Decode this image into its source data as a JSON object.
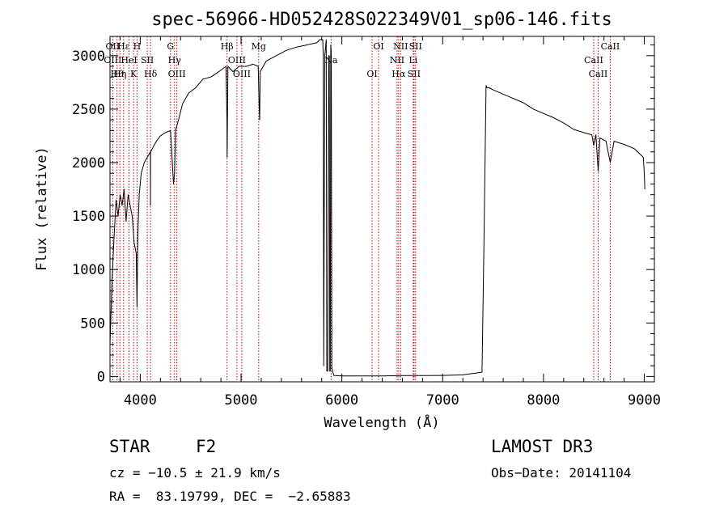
{
  "chart_data": {
    "type": "line",
    "title": "spec-56966-HD052428S022349V01_sp06-146.fits",
    "xlabel": "Wavelength (Å)",
    "ylabel": "Flux (relative)",
    "xlim": [
      3700,
      9100
    ],
    "ylim": [
      -50,
      3180
    ],
    "xticks": [
      4000,
      5000,
      6000,
      7000,
      8000,
      9000
    ],
    "yticks": [
      0,
      500,
      1000,
      1500,
      2000,
      2500,
      3000
    ],
    "grid": false,
    "series": [
      {
        "x": [
          3700,
          3720,
          3740,
          3760,
          3780,
          3800,
          3820,
          3840,
          3860,
          3880,
          3900,
          3920,
          3940,
          3960,
          3968,
          3975,
          3990,
          4010,
          4040,
          4070,
          4100,
          4101,
          4102,
          4130,
          4160,
          4200,
          4250,
          4300,
          4330,
          4340,
          4350,
          4380,
          4420,
          4480,
          4550,
          4620,
          4700,
          4780,
          4850,
          4860,
          4862,
          4870,
          4920,
          4980,
          5050,
          5120,
          5170,
          5180,
          5184,
          5190,
          5250,
          5350,
          5450,
          5550,
          5650,
          5750,
          5780,
          5810,
          5815,
          5820,
          5830,
          5845,
          5850,
          5860,
          5870,
          5875,
          5880,
          5885,
          5890,
          5895,
          5900,
          5920,
          6000,
          6200,
          6400,
          6600,
          6800,
          7000,
          7200,
          7390,
          7410,
          7430,
          7440,
          7460,
          7500,
          7600,
          7700,
          7800,
          7900,
          8000,
          8100,
          8200,
          8300,
          8400,
          8480,
          8498,
          8520,
          8542,
          8560,
          8620,
          8662,
          8700,
          8800,
          8900,
          8990,
          9000,
          9005
        ],
        "y": [
          300,
          900,
          1300,
          1650,
          1500,
          1700,
          1600,
          1750,
          1450,
          1700,
          1600,
          1500,
          1250,
          1150,
          650,
          1300,
          1700,
          1900,
          2000,
          2050,
          2100,
          1600,
          2100,
          2150,
          2200,
          2250,
          2280,
          2300,
          1800,
          1900,
          2300,
          2400,
          2550,
          2650,
          2700,
          2780,
          2800,
          2850,
          2900,
          2400,
          2050,
          2900,
          2850,
          2900,
          2900,
          2920,
          2900,
          2500,
          2400,
          2850,
          2950,
          3000,
          3050,
          3080,
          3100,
          3120,
          3150,
          3150,
          3000,
          100,
          3000,
          3150,
          50,
          50,
          3000,
          3000,
          50,
          50,
          3100,
          3000,
          80,
          10,
          5,
          5,
          5,
          8,
          8,
          10,
          15,
          40,
          1300,
          2720,
          2700,
          2700,
          2680,
          2640,
          2600,
          2560,
          2500,
          2460,
          2420,
          2370,
          2310,
          2280,
          2260,
          2160,
          2260,
          1920,
          2230,
          2200,
          2000,
          2200,
          2170,
          2130,
          2050,
          1900,
          1750
        ]
      }
    ],
    "line_markers": [
      {
        "wl": 3727,
        "labels": [
          "OII",
          "OIII"
        ]
      },
      {
        "wl": 3770,
        "labels": [
          "Hθ"
        ]
      },
      {
        "wl": 3798,
        "labels": [
          "Hη"
        ]
      },
      {
        "wl": 3835,
        "labels": [
          "Hε"
        ]
      },
      {
        "wl": 3889,
        "labels": [
          "HeI"
        ]
      },
      {
        "wl": 3934,
        "labels": [
          "K"
        ]
      },
      {
        "wl": 3968,
        "labels": [
          "H"
        ]
      },
      {
        "wl": 4070,
        "labels": [
          "SII"
        ]
      },
      {
        "wl": 4102,
        "labels": [
          "Hδ"
        ]
      },
      {
        "wl": 4300,
        "labels": [
          "G"
        ]
      },
      {
        "wl": 4340,
        "labels": [
          "Hγ"
        ]
      },
      {
        "wl": 4363,
        "labels": [
          "OIII"
        ]
      },
      {
        "wl": 4861,
        "labels": [
          "Hβ"
        ]
      },
      {
        "wl": 4959,
        "labels": [
          "OIII"
        ]
      },
      {
        "wl": 5007,
        "labels": [
          "OIII"
        ]
      },
      {
        "wl": 5175,
        "labels": [
          "Mg"
        ]
      },
      {
        "wl": 5893,
        "labels": [
          "Na"
        ]
      },
      {
        "wl": 6300,
        "labels": [
          "OI"
        ]
      },
      {
        "wl": 6364,
        "labels": [
          "OI"
        ]
      },
      {
        "wl": 6548,
        "labels": [
          "NII"
        ]
      },
      {
        "wl": 6563,
        "labels": [
          "Hα"
        ]
      },
      {
        "wl": 6583,
        "labels": [
          "NII"
        ]
      },
      {
        "wl": 6708,
        "labels": [
          "Li"
        ]
      },
      {
        "wl": 6716,
        "labels": [
          "SII"
        ]
      },
      {
        "wl": 6731,
        "labels": [
          "SII"
        ]
      },
      {
        "wl": 8498,
        "labels": [
          "CaII"
        ]
      },
      {
        "wl": 8542,
        "labels": [
          "CaII"
        ]
      },
      {
        "wl": 8662,
        "labels": [
          "CaII"
        ]
      }
    ]
  },
  "info": {
    "object_type": "STAR",
    "subclass": "F2",
    "survey": "LAMOST DR3",
    "cz_text": "cz = −10.5 ± 21.9 km/s",
    "obs_date": "Obs−Date: 20141104",
    "coords": "RA =  83.19799, DEC =  −2.65883"
  },
  "colors": {
    "spectrum": "#000000",
    "line_marker": "#c00000"
  }
}
